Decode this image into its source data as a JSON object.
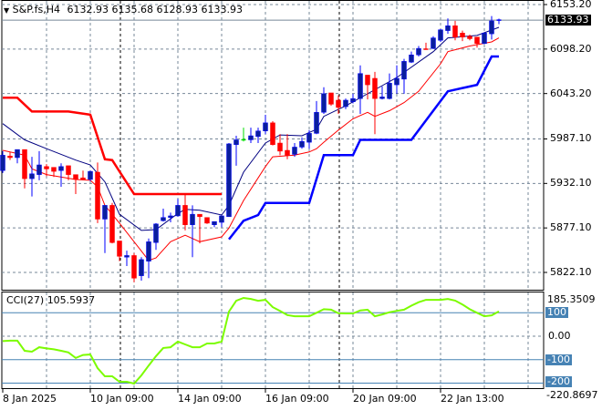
{
  "header": {
    "symbol": "S&P.fs,H4",
    "open": "6132.93",
    "high": "6135.68",
    "low": "6128.93",
    "close": "6133.93",
    "dropdown_icon": "triangle-down-icon"
  },
  "price_axis": {
    "ticks": [
      "6153.20",
      "6098.20",
      "6043.20",
      "5987.10",
      "5932.10",
      "5877.10",
      "5822.10"
    ],
    "current_price": "6133.93"
  },
  "cci_panel": {
    "title": "CCI(27)",
    "value": "105.5937",
    "max_label": "185.3509",
    "min_label": "-220.8697",
    "level_labels": [
      "100",
      "0.00",
      "-100",
      "-200"
    ]
  },
  "time_axis": {
    "labels": [
      "8 Jan 2025",
      "10 Jan 09:00",
      "14 Jan 09:00",
      "16 Jan 09:00",
      "20 Jan 09:00",
      "22 Jan 13:00"
    ]
  },
  "colors": {
    "bull_body": "#0a1e9e",
    "bull_wick": "#0000ff",
    "bear": "#ff0000",
    "doji": "#00dd00",
    "ma_fast": "#000080",
    "ma_slow": "#ff0000",
    "stop_down": "#ff0000",
    "stop_up": "#0000ff",
    "cci_line": "#7cfc00",
    "cci_levels": "#4682b4",
    "grid": "#778899"
  },
  "chart_data": [
    {
      "type": "candlestick",
      "title": "S&P.fs,H4",
      "ylim": [
        5822.1,
        6153.2
      ],
      "grid": true,
      "ohlc": [
        [
          5948,
          5972,
          5945,
          5967
        ],
        [
          5966,
          5971,
          5961,
          5964
        ],
        [
          5964,
          5974,
          5957,
          5974
        ],
        [
          5974,
          5974,
          5926,
          5938
        ],
        [
          5938,
          5965,
          5916,
          5944
        ],
        [
          5943,
          5972,
          5936,
          5955
        ],
        [
          5953,
          5956,
          5941,
          5950
        ],
        [
          5952,
          5952,
          5940,
          5947
        ],
        [
          5948,
          5957,
          5928,
          5953
        ],
        [
          5954,
          5954,
          5936,
          5943
        ],
        [
          5943,
          5943,
          5919,
          5937
        ],
        [
          5939,
          5948,
          5936,
          5937
        ],
        [
          5937,
          5948,
          5935,
          5947
        ],
        [
          5946,
          5958,
          5883,
          5888
        ],
        [
          5888,
          5905,
          5846,
          5905
        ],
        [
          5905,
          5908,
          5858,
          5859
        ],
        [
          5861,
          5861,
          5836,
          5842
        ],
        [
          5841,
          5849,
          5830,
          5843
        ],
        [
          5843,
          5846,
          5810,
          5815
        ],
        [
          5818,
          5841,
          5812,
          5838
        ],
        [
          5836,
          5864,
          5815,
          5860
        ],
        [
          5859,
          5883,
          5850,
          5882
        ],
        [
          5886,
          5901,
          5885,
          5890
        ],
        [
          5890,
          5896,
          5884,
          5892
        ],
        [
          5892,
          5913,
          5891,
          5905
        ],
        [
          5905,
          5919,
          5874,
          5881
        ],
        [
          5881,
          5905,
          5841,
          5894
        ],
        [
          5894,
          5894,
          5858,
          5891
        ],
        [
          5890,
          5890,
          5882,
          5883
        ],
        [
          5881,
          5885,
          5878,
          5885
        ],
        [
          5884,
          5892,
          5878,
          5892
        ],
        [
          5891,
          5982,
          5891,
          5981
        ],
        [
          5980,
          5991,
          5954,
          5986
        ],
        [
          5986,
          6001,
          5984,
          5986
        ],
        [
          5986,
          6001,
          5982,
          5991
        ],
        [
          5990,
          6001,
          5982,
          5997
        ],
        [
          5997,
          6017,
          5993,
          6007
        ],
        [
          6007,
          6009,
          5979,
          5980
        ],
        [
          5982,
          5993,
          5967,
          5972
        ],
        [
          5973,
          5993,
          5962,
          5967
        ],
        [
          5968,
          5982,
          5965,
          5977
        ],
        [
          5977,
          5989,
          5975,
          5984
        ],
        [
          5983,
          5998,
          5975,
          5994
        ],
        [
          5994,
          6034,
          5993,
          6020
        ],
        [
          6020,
          6051,
          6018,
          6043
        ],
        [
          6044,
          6044,
          6028,
          6030
        ],
        [
          6035,
          6041,
          6018,
          6026
        ],
        [
          6027,
          6037,
          6024,
          6035
        ],
        [
          6033,
          6043,
          6031,
          6037
        ],
        [
          6037,
          6078,
          6018,
          6068
        ],
        [
          6066,
          6066,
          6036,
          6054
        ],
        [
          6062,
          6070,
          5993,
          6037
        ],
        [
          6037,
          6052,
          6036,
          6039
        ],
        [
          6037,
          6068,
          6036,
          6056
        ],
        [
          6054,
          6078,
          6043,
          6062
        ],
        [
          6061,
          6086,
          6043,
          6083
        ],
        [
          6082,
          6095,
          6081,
          6091
        ],
        [
          6091,
          6102,
          6089,
          6099
        ],
        [
          6099,
          6106,
          6098,
          6098
        ],
        [
          6099,
          6114,
          6098,
          6112
        ],
        [
          6109,
          6123,
          6107,
          6122
        ],
        [
          6121,
          6136,
          6117,
          6127
        ],
        [
          6127,
          6133,
          6109,
          6113
        ],
        [
          6118,
          6121,
          6108,
          6113
        ],
        [
          6114,
          6116,
          6109,
          6111
        ],
        [
          6113,
          6113,
          6100,
          6105
        ],
        [
          6105,
          6119,
          6104,
          6118
        ],
        [
          6117,
          6139,
          6110,
          6133
        ],
        [
          6132.93,
          6135.68,
          6128.93,
          6133.93
        ]
      ],
      "ma_fast": [
        [
          0,
          6006
        ],
        [
          3,
          5986
        ],
        [
          6,
          5975
        ],
        [
          10,
          5961
        ],
        [
          12,
          5955
        ],
        [
          14,
          5934
        ],
        [
          16,
          5894
        ],
        [
          19,
          5874
        ],
        [
          21,
          5875
        ],
        [
          24,
          5895
        ],
        [
          25,
          5900
        ],
        [
          27,
          5899
        ],
        [
          30,
          5893
        ],
        [
          31,
          5905
        ],
        [
          33,
          5946
        ],
        [
          36,
          5982
        ],
        [
          38,
          5992
        ],
        [
          41,
          5991
        ],
        [
          43,
          5999
        ],
        [
          44,
          6015
        ],
        [
          47,
          6028
        ],
        [
          52,
          6053
        ],
        [
          54,
          6063
        ],
        [
          59,
          6095
        ],
        [
          61,
          6112
        ],
        [
          65,
          6115
        ],
        [
          68,
          6125
        ]
      ],
      "ma_slow": [
        [
          0,
          5973
        ],
        [
          3,
          5967
        ],
        [
          4,
          5950
        ],
        [
          6,
          5943
        ],
        [
          10,
          5937
        ],
        [
          12,
          5936
        ],
        [
          13,
          5928
        ],
        [
          14,
          5905
        ],
        [
          16,
          5883
        ],
        [
          18,
          5860
        ],
        [
          20,
          5837
        ],
        [
          21,
          5840
        ],
        [
          23,
          5860
        ],
        [
          25,
          5868
        ],
        [
          27,
          5860
        ],
        [
          30,
          5866
        ],
        [
          31,
          5877
        ],
        [
          33,
          5911
        ],
        [
          36,
          5953
        ],
        [
          37,
          5965
        ],
        [
          40,
          5967
        ],
        [
          42,
          5971
        ],
        [
          43,
          5975
        ],
        [
          44,
          5983
        ],
        [
          46,
          5998
        ],
        [
          48,
          6012
        ],
        [
          49,
          6016
        ],
        [
          50,
          6020
        ],
        [
          51,
          6015
        ],
        [
          53,
          6022
        ],
        [
          55,
          6032
        ],
        [
          57,
          6046
        ],
        [
          60,
          6080
        ],
        [
          61,
          6095
        ],
        [
          64,
          6102
        ],
        [
          67,
          6107
        ],
        [
          68,
          6112
        ]
      ],
      "stop_down": [
        [
          0,
          6038
        ],
        [
          2,
          6038
        ],
        [
          4,
          6021
        ],
        [
          9,
          6021
        ],
        [
          12,
          6017
        ],
        [
          14,
          5962
        ],
        [
          15,
          5961
        ],
        [
          18,
          5919
        ],
        [
          30,
          5919
        ]
      ],
      "stop_up": [
        [
          31,
          5863
        ],
        [
          33,
          5886
        ],
        [
          35,
          5893
        ],
        [
          36,
          5908
        ],
        [
          42,
          5908
        ],
        [
          44,
          5967
        ],
        [
          48,
          5967
        ],
        [
          49,
          5986
        ],
        [
          56,
          5986
        ],
        [
          61,
          6046
        ],
        [
          65,
          6054
        ],
        [
          67,
          6089
        ],
        [
          68,
          6089
        ]
      ]
    },
    {
      "type": "line",
      "title": "CCI(27)",
      "ylim": [
        -220.8697,
        185.3509
      ],
      "levels": [
        100,
        0,
        -100,
        -200
      ],
      "values": [
        -21,
        -19,
        -19,
        -62,
        -66,
        -47,
        -52,
        -56,
        -62,
        -69,
        -93,
        -80,
        -78,
        -136,
        -171,
        -171,
        -194,
        -194,
        -202,
        -167,
        -125,
        -85,
        -50,
        -47,
        -23,
        -35,
        -47,
        -47,
        -31,
        -31,
        -23,
        105,
        151,
        163,
        159,
        151,
        155,
        124,
        108,
        90,
        85,
        85,
        85,
        100,
        115,
        113,
        98,
        97,
        97,
        110,
        113,
        85,
        93,
        102,
        108,
        113,
        130,
        145,
        155,
        155,
        155,
        159,
        152,
        135,
        115,
        100,
        85,
        89,
        105.5937
      ]
    }
  ]
}
